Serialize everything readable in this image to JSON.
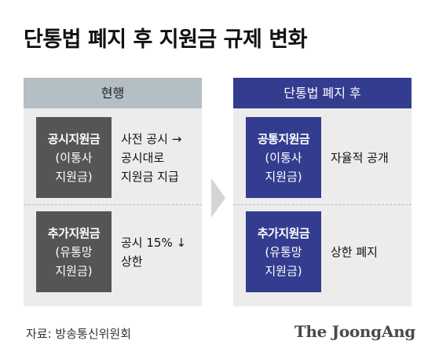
{
  "title": "단통법 폐지 후 지원금 규제 변화",
  "current": {
    "header": "현행",
    "items": [
      {
        "name": "공시지원금",
        "name_sub": [
          "(이통사",
          "지원금)"
        ],
        "desc": [
          "사전 공시 →",
          "공시대로",
          "지원금 지급"
        ]
      },
      {
        "name": "추가지원금",
        "name_sub": [
          "(유통망",
          "지원금)"
        ],
        "desc": [
          "공시 15% ↓",
          "상한"
        ]
      }
    ]
  },
  "after": {
    "header": "단통법 폐지 후",
    "items": [
      {
        "name": "공통지원금",
        "name_sub": [
          "(이통사",
          "지원금)"
        ],
        "desc": [
          "자율적 공개"
        ]
      },
      {
        "name": "추가지원금",
        "name_sub": [
          "(유통망",
          "지원금)"
        ],
        "desc": [
          "상한 폐지"
        ]
      }
    ]
  },
  "source": "자료: 방송통신위원회",
  "logo": "The JoongAng",
  "colors": {
    "current_header": "#b3bfc4",
    "after_accent": "#333c8f",
    "current_box": "#555555",
    "panel_bg": "#ececec",
    "arrow": "#d4d4d4"
  },
  "icons": {
    "transition": "chevron-right-arrow"
  }
}
